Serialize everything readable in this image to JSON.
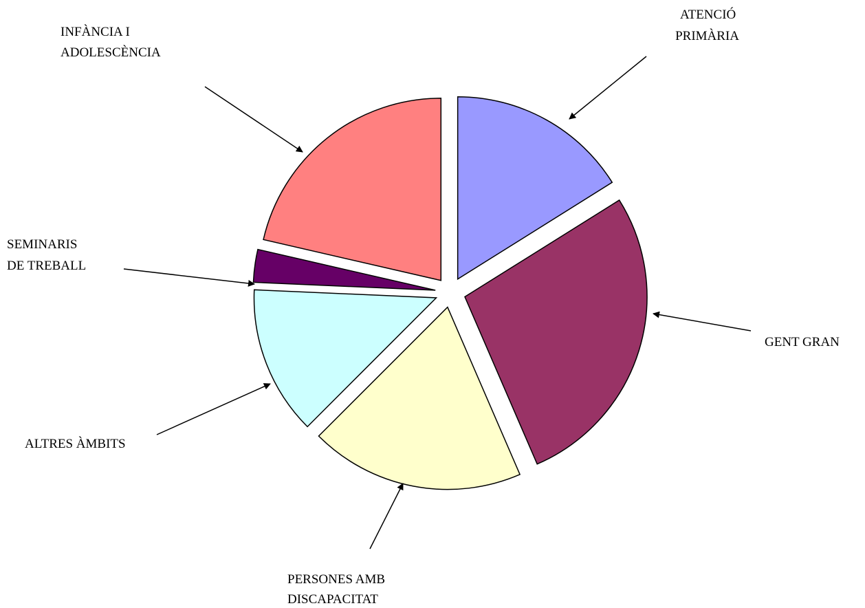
{
  "chart_data": {
    "type": "pie",
    "title": "",
    "exploded": true,
    "label_style": "outside labels with arrows",
    "legend": "none",
    "slices": [
      {
        "key": "atencio",
        "label_lines": [
          "ATENCIÓ",
          "PRIMÀRIA"
        ],
        "value": 16.1,
        "color": "#9999FF"
      },
      {
        "key": "gent",
        "label_lines": [
          "GENT GRAN"
        ],
        "value": 27.4,
        "color": "#993366"
      },
      {
        "key": "persones",
        "label_lines": [
          "PERSONES AMB",
          "DISCAPACITAT"
        ],
        "value": 19.0,
        "color": "#FFFFCC"
      },
      {
        "key": "altres",
        "label_lines": [
          "ALTRES ÀMBITS"
        ],
        "value": 13.2,
        "color": "#CCFFFF"
      },
      {
        "key": "seminaris",
        "label_lines": [
          "SEMINARIS",
          "DE TREBALL"
        ],
        "value": 2.9,
        "color": "#660066"
      },
      {
        "key": "infancia",
        "label_lines": [
          "INFÀNCIA I",
          "ADOLESCÈNCIA"
        ],
        "value": 21.4,
        "color": "#FF8080"
      }
    ]
  }
}
